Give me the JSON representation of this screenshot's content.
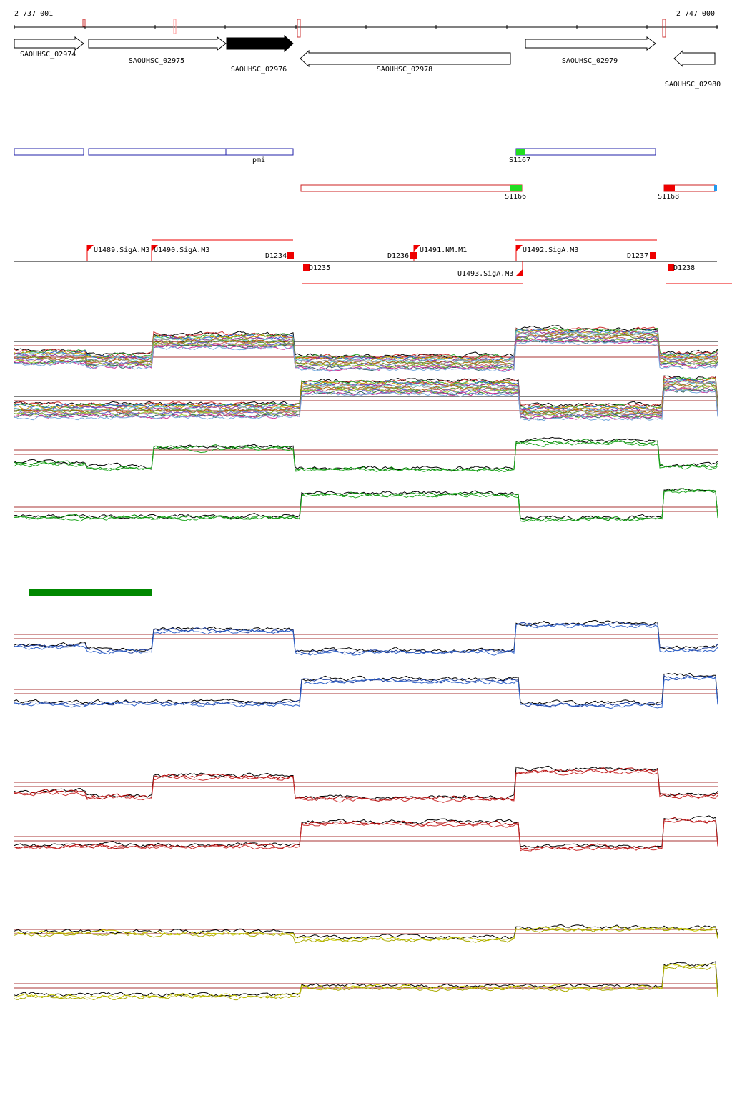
{
  "ruler": {
    "start": "2 737 001",
    "end": "2 747 000"
  },
  "genes": [
    "SAOUHSC_02974",
    "SAOUHSC_02975",
    "SAOUHSC_02976",
    "SAOUHSC_02978",
    "SAOUHSC_02979",
    "SAOUHSC_02980"
  ],
  "features": [
    "pmi",
    "S1167",
    "S1166",
    "S1168"
  ],
  "promoters": [
    "U1489.SigA.M3",
    "U1490.SigA.M3",
    "U1491.NM.M1",
    "U1492.SigA.M3",
    "U1493.SigA.M3"
  ],
  "terminators": [
    "D1234",
    "D1235",
    "D1236",
    "D1237",
    "D1238"
  ]
}
